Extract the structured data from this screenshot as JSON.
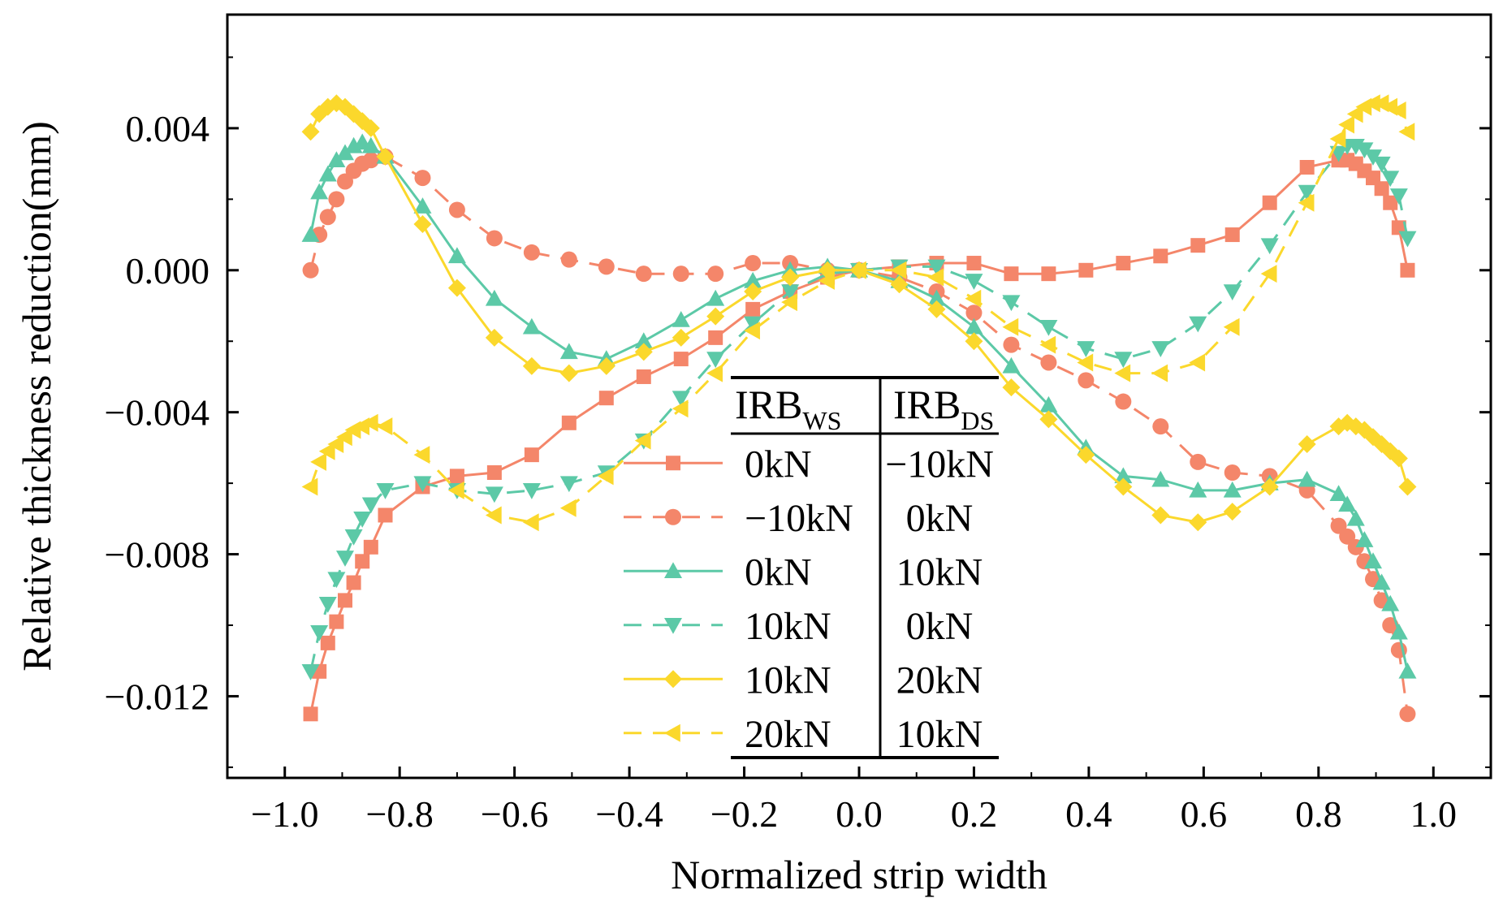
{
  "chart_data": {
    "type": "line",
    "xlabel": "Normalized strip width",
    "ylabel": "Relative thickness reduction(mm)",
    "xlim": [
      -1.1,
      1.1
    ],
    "ylim": [
      -0.0143,
      0.0072
    ],
    "xticks": [
      -1.0,
      -0.8,
      -0.6,
      -0.4,
      -0.2,
      0.0,
      0.2,
      0.4,
      0.6,
      0.8,
      1.0
    ],
    "xtick_labels": [
      "−1.0",
      "−0.8",
      "−0.6",
      "−0.4",
      "−0.2",
      "0.0",
      "0.2",
      "0.4",
      "0.6",
      "0.8",
      "1.0"
    ],
    "yticks": [
      0.004,
      0.0,
      -0.004,
      -0.008,
      -0.012
    ],
    "ytick_labels": [
      "0.004",
      "0.000",
      "−0.004",
      "−0.008",
      "−0.012"
    ],
    "grid": false,
    "legend": {
      "placement": "center",
      "header_ws": "IRB",
      "header_ws_sub": "WS",
      "header_ds": "IRB",
      "header_ds_sub": "DS",
      "rows": [
        {
          "ws": "0kN",
          "ds": "−10kN"
        },
        {
          "ws": "−10kN",
          "ds": "0kN"
        },
        {
          "ws": "0kN",
          "ds": "10kN"
        },
        {
          "ws": "10kN",
          "ds": "0kN"
        },
        {
          "ws": "10kN",
          "ds": "20kN"
        },
        {
          "ws": "20kN",
          "ds": "10kN"
        }
      ]
    },
    "series": [
      {
        "color": "#F4866A",
        "dash": "solid",
        "marker": "square",
        "x": [
          -0.955,
          -0.94,
          -0.925,
          -0.91,
          -0.895,
          -0.88,
          -0.865,
          -0.85,
          -0.825,
          -0.76,
          -0.7,
          -0.635,
          -0.57,
          -0.505,
          -0.44,
          -0.375,
          -0.31,
          -0.25,
          -0.185,
          -0.12,
          -0.055,
          0.0,
          0.07,
          0.135,
          0.2,
          0.265,
          0.33,
          0.395,
          0.46,
          0.525,
          0.59,
          0.65,
          0.715,
          0.78,
          0.835,
          0.85,
          0.865,
          0.88,
          0.895,
          0.91,
          0.925,
          0.94,
          0.955
        ],
        "y": [
          -0.0125,
          -0.0113,
          -0.0105,
          -0.0099,
          -0.0093,
          -0.0088,
          -0.0082,
          -0.0078,
          -0.0069,
          -0.0061,
          -0.0058,
          -0.0057,
          -0.0052,
          -0.0043,
          -0.0036,
          -0.003,
          -0.0025,
          -0.0019,
          -0.0011,
          -0.0006,
          -0.0002,
          0.0,
          0.0001,
          0.0002,
          0.0002,
          -0.0001,
          -0.0001,
          0.0,
          0.0002,
          0.0004,
          0.0007,
          0.001,
          0.0019,
          0.0029,
          0.0031,
          0.0031,
          0.003,
          0.0028,
          0.0026,
          0.0023,
          0.0019,
          0.0012,
          0.0
        ]
      },
      {
        "color": "#F4866A",
        "dash": "dashed",
        "marker": "circle",
        "x": [
          -0.955,
          -0.94,
          -0.925,
          -0.91,
          -0.895,
          -0.88,
          -0.865,
          -0.85,
          -0.825,
          -0.76,
          -0.7,
          -0.635,
          -0.57,
          -0.505,
          -0.44,
          -0.375,
          -0.31,
          -0.25,
          -0.185,
          -0.12,
          -0.055,
          0.0,
          0.07,
          0.135,
          0.2,
          0.265,
          0.33,
          0.395,
          0.46,
          0.525,
          0.59,
          0.65,
          0.715,
          0.78,
          0.835,
          0.85,
          0.865,
          0.88,
          0.895,
          0.91,
          0.925,
          0.94,
          0.955
        ],
        "y": [
          0.0,
          0.001,
          0.0015,
          0.002,
          0.0025,
          0.0028,
          0.003,
          0.0031,
          0.0032,
          0.0026,
          0.0017,
          0.0009,
          0.0005,
          0.0003,
          0.0001,
          -0.0001,
          -0.0001,
          -0.0001,
          0.0002,
          0.0002,
          0.0,
          0.0,
          -0.0002,
          -0.0006,
          -0.0012,
          -0.0021,
          -0.0026,
          -0.0031,
          -0.0037,
          -0.0044,
          -0.0054,
          -0.0057,
          -0.0058,
          -0.0062,
          -0.0072,
          -0.0075,
          -0.0078,
          -0.0082,
          -0.0087,
          -0.0093,
          -0.01,
          -0.0107,
          -0.0125
        ]
      },
      {
        "color": "#5CC9A7",
        "dash": "solid",
        "marker": "triangle-up",
        "x": [
          -0.955,
          -0.94,
          -0.925,
          -0.91,
          -0.895,
          -0.88,
          -0.865,
          -0.85,
          -0.825,
          -0.76,
          -0.7,
          -0.635,
          -0.57,
          -0.505,
          -0.44,
          -0.375,
          -0.31,
          -0.25,
          -0.185,
          -0.12,
          -0.055,
          0.0,
          0.07,
          0.135,
          0.2,
          0.265,
          0.33,
          0.395,
          0.46,
          0.525,
          0.59,
          0.65,
          0.715,
          0.78,
          0.835,
          0.85,
          0.865,
          0.88,
          0.895,
          0.91,
          0.925,
          0.94,
          0.955
        ],
        "y": [
          0.001,
          0.0022,
          0.0027,
          0.0031,
          0.0033,
          0.0035,
          0.0036,
          0.0035,
          0.0032,
          0.0018,
          0.0004,
          -0.0008,
          -0.0016,
          -0.0023,
          -0.0025,
          -0.002,
          -0.0014,
          -0.0008,
          -0.0003,
          0.0,
          0.0001,
          0.0,
          -0.0003,
          -0.0008,
          -0.0016,
          -0.0027,
          -0.0038,
          -0.005,
          -0.0058,
          -0.0059,
          -0.0062,
          -0.0062,
          -0.006,
          -0.0059,
          -0.0063,
          -0.0066,
          -0.007,
          -0.0076,
          -0.0082,
          -0.0088,
          -0.0094,
          -0.0102,
          -0.0113
        ]
      },
      {
        "color": "#5CC9A7",
        "dash": "dashed",
        "marker": "triangle-down",
        "x": [
          -0.955,
          -0.94,
          -0.925,
          -0.91,
          -0.895,
          -0.88,
          -0.865,
          -0.85,
          -0.825,
          -0.76,
          -0.7,
          -0.635,
          -0.57,
          -0.505,
          -0.44,
          -0.375,
          -0.31,
          -0.25,
          -0.185,
          -0.12,
          -0.055,
          0.0,
          0.07,
          0.135,
          0.2,
          0.265,
          0.33,
          0.395,
          0.46,
          0.525,
          0.59,
          0.65,
          0.715,
          0.78,
          0.835,
          0.85,
          0.865,
          0.88,
          0.895,
          0.91,
          0.925,
          0.94,
          0.955
        ],
        "y": [
          -0.0113,
          -0.0102,
          -0.0094,
          -0.0087,
          -0.0081,
          -0.0075,
          -0.007,
          -0.0066,
          -0.0062,
          -0.006,
          -0.0062,
          -0.0063,
          -0.0062,
          -0.006,
          -0.0057,
          -0.0048,
          -0.0036,
          -0.0025,
          -0.0015,
          -0.0006,
          -0.0001,
          0.0,
          0.0001,
          0.0001,
          -0.0003,
          -0.0009,
          -0.0016,
          -0.0022,
          -0.0025,
          -0.0022,
          -0.0015,
          -0.0006,
          0.0007,
          0.0022,
          0.0033,
          0.0035,
          0.0035,
          0.0034,
          0.0032,
          0.003,
          0.0026,
          0.0021,
          0.0009
        ]
      },
      {
        "color": "#FBD82C",
        "dash": "solid",
        "marker": "diamond",
        "x": [
          -0.955,
          -0.94,
          -0.925,
          -0.91,
          -0.895,
          -0.88,
          -0.865,
          -0.85,
          -0.825,
          -0.76,
          -0.7,
          -0.635,
          -0.57,
          -0.505,
          -0.44,
          -0.375,
          -0.31,
          -0.25,
          -0.185,
          -0.12,
          -0.055,
          0.0,
          0.07,
          0.135,
          0.2,
          0.265,
          0.33,
          0.395,
          0.46,
          0.525,
          0.59,
          0.65,
          0.715,
          0.78,
          0.835,
          0.85,
          0.865,
          0.88,
          0.895,
          0.91,
          0.925,
          0.94,
          0.955
        ],
        "y": [
          0.0039,
          0.0044,
          0.0046,
          0.0047,
          0.0046,
          0.0044,
          0.0042,
          0.004,
          0.0032,
          0.0013,
          -0.0005,
          -0.0019,
          -0.0027,
          -0.0029,
          -0.0027,
          -0.0023,
          -0.0019,
          -0.0013,
          -0.0006,
          -0.0002,
          0.0,
          0.0,
          -0.0004,
          -0.0011,
          -0.002,
          -0.0033,
          -0.0042,
          -0.0052,
          -0.0061,
          -0.0069,
          -0.0071,
          -0.0068,
          -0.0061,
          -0.0049,
          -0.0044,
          -0.0043,
          -0.0044,
          -0.0045,
          -0.0047,
          -0.0049,
          -0.0051,
          -0.0053,
          -0.0061
        ]
      },
      {
        "color": "#FBD82C",
        "dash": "dashed",
        "marker": "triangle-left",
        "x": [
          -0.955,
          -0.94,
          -0.925,
          -0.91,
          -0.895,
          -0.88,
          -0.865,
          -0.85,
          -0.825,
          -0.76,
          -0.7,
          -0.635,
          -0.57,
          -0.505,
          -0.44,
          -0.375,
          -0.31,
          -0.25,
          -0.185,
          -0.12,
          -0.055,
          0.0,
          0.07,
          0.135,
          0.2,
          0.265,
          0.33,
          0.395,
          0.46,
          0.525,
          0.59,
          0.65,
          0.715,
          0.78,
          0.835,
          0.85,
          0.865,
          0.88,
          0.895,
          0.91,
          0.925,
          0.94,
          0.955
        ],
        "y": [
          -0.0061,
          -0.0054,
          -0.0051,
          -0.0049,
          -0.0047,
          -0.0045,
          -0.0044,
          -0.0043,
          -0.0044,
          -0.0052,
          -0.0062,
          -0.0069,
          -0.0071,
          -0.0067,
          -0.0058,
          -0.0048,
          -0.0039,
          -0.0029,
          -0.0017,
          -0.0009,
          -0.0003,
          0.0,
          0.0,
          -0.0002,
          -0.0008,
          -0.0016,
          -0.0021,
          -0.0026,
          -0.0029,
          -0.0029,
          -0.0026,
          -0.0016,
          -0.0001,
          0.0019,
          0.0037,
          0.0041,
          0.0044,
          0.0046,
          0.0047,
          0.0047,
          0.0046,
          0.0045,
          0.0039
        ]
      }
    ]
  }
}
